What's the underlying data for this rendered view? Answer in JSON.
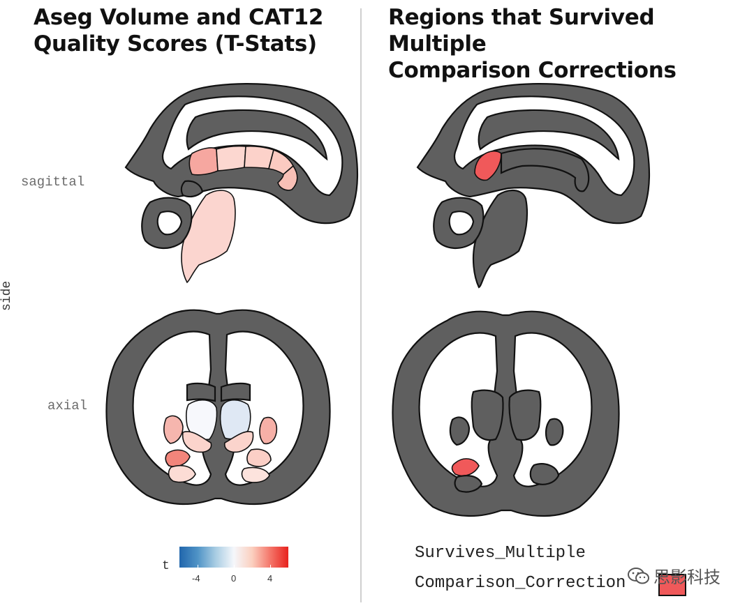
{
  "titles": {
    "left_line1": "Aseg Volume and CAT12",
    "left_line2": "Quality Scores (T-Stats)",
    "right_line1": "Regions that Survived Multiple",
    "right_line2": "Comparison Corrections"
  },
  "axis_labels": {
    "side": "side",
    "sagittal": "sagittal",
    "axial": "axial"
  },
  "legend_left": {
    "title": "t",
    "ticks": [
      "-4",
      "0",
      "4"
    ],
    "range": [
      -6,
      6
    ],
    "colors": [
      "#2166ac",
      "#f5f7fb",
      "#e8221e"
    ]
  },
  "legend_right": {
    "line1": "Survives_Multiple",
    "line2": "Comparison_Correction",
    "swatch_color": "#f0595a"
  },
  "watermark": {
    "text": "思影科技",
    "icon": "wechat-icon"
  },
  "colors": {
    "brain": "#5f5f5f",
    "highlight": "#f0595a"
  }
}
